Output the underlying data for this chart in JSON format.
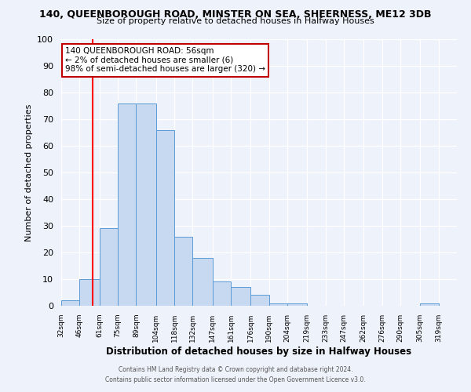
{
  "title1": "140, QUEENBOROUGH ROAD, MINSTER ON SEA, SHEERNESS, ME12 3DB",
  "title2": "Size of property relative to detached houses in Halfway Houses",
  "xlabel": "Distribution of detached houses by size in Halfway Houses",
  "ylabel": "Number of detached properties",
  "bins": [
    "32sqm",
    "46sqm",
    "61sqm",
    "75sqm",
    "89sqm",
    "104sqm",
    "118sqm",
    "132sqm",
    "147sqm",
    "161sqm",
    "176sqm",
    "190sqm",
    "204sqm",
    "219sqm",
    "233sqm",
    "247sqm",
    "262sqm",
    "276sqm",
    "290sqm",
    "305sqm",
    "319sqm"
  ],
  "counts": [
    2,
    10,
    29,
    76,
    76,
    66,
    26,
    18,
    9,
    7,
    4,
    1,
    1,
    0,
    0,
    0,
    0,
    0,
    0,
    1,
    0
  ],
  "bin_edges": [
    32,
    46,
    61,
    75,
    89,
    104,
    118,
    132,
    147,
    161,
    176,
    190,
    204,
    219,
    233,
    247,
    262,
    276,
    290,
    305,
    319,
    333
  ],
  "bar_color": "#c6d9f1",
  "bar_edge_color": "#5b9bd5",
  "red_line_x": 56,
  "annotation_title": "140 QUEENBOROUGH ROAD: 56sqm",
  "annotation_line1": "← 2% of detached houses are smaller (6)",
  "annotation_line2": "98% of semi-detached houses are larger (320) →",
  "annotation_box_color": "#ffffff",
  "annotation_box_edge": "#c00000",
  "ylim": [
    0,
    100
  ],
  "yticks": [
    0,
    10,
    20,
    30,
    40,
    50,
    60,
    70,
    80,
    90,
    100
  ],
  "footer1": "Contains HM Land Registry data © Crown copyright and database right 2024.",
  "footer2": "Contains public sector information licensed under the Open Government Licence v3.0.",
  "bg_color": "#eef2fa"
}
